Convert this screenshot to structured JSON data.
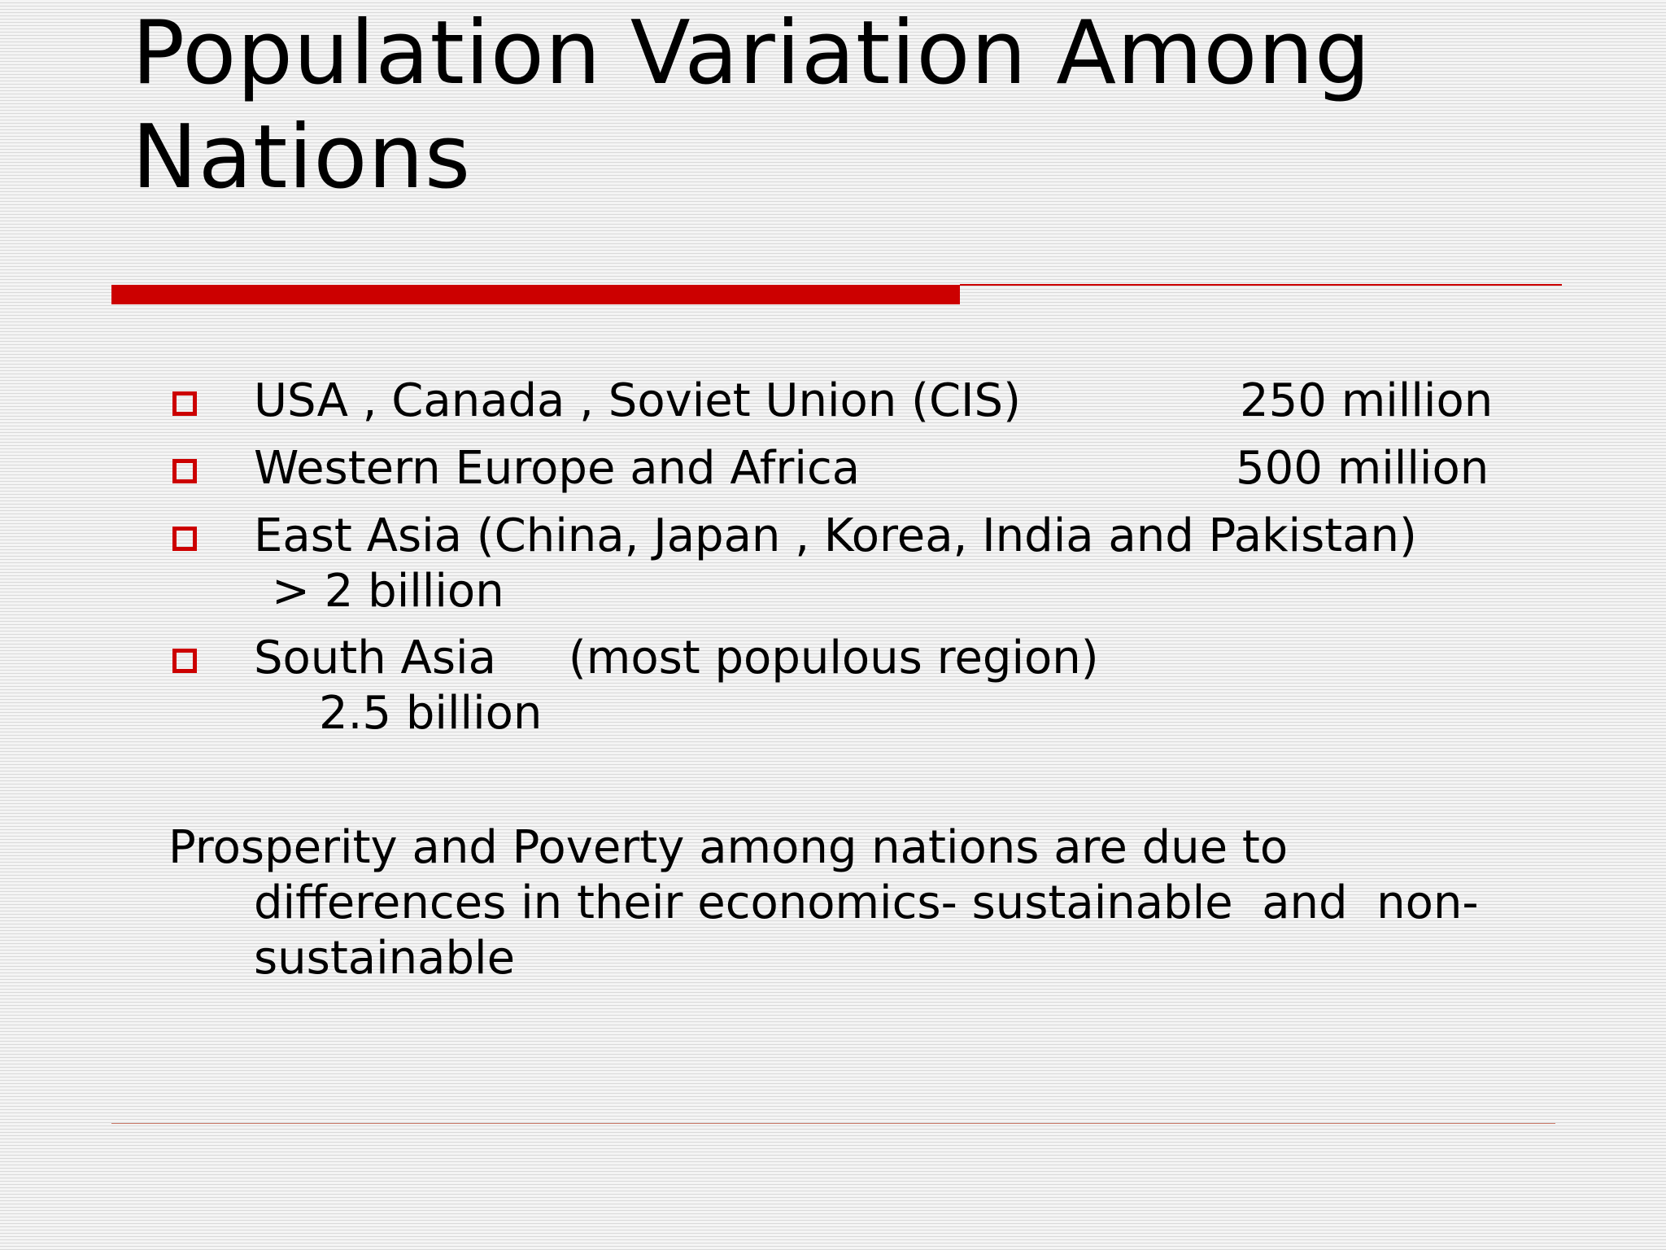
{
  "slide": {
    "title_line1": "Population Variation Among",
    "title_line2": "Nations",
    "accent_color": "#cc0000",
    "bullet_icon": "hollow-square-icon",
    "bullets": [
      {
        "label": "USA , Canada , Soviet Union (CIS)",
        "value": "250 million"
      },
      {
        "label": "Western Europe and Africa",
        "value": "500 million"
      },
      {
        "label": "East Asia (China, Japan , Korea, India and Pakistan)",
        "value": "> 2 billion"
      },
      {
        "label": "South Asia     (most populous region)",
        "value": "2.5 billion"
      }
    ],
    "paragraph": {
      "line1": "Prosperity and Poverty among nations are due to",
      "line2": "differences in their economics- sustainable  and  non-",
      "line3": "sustainable"
    }
  }
}
